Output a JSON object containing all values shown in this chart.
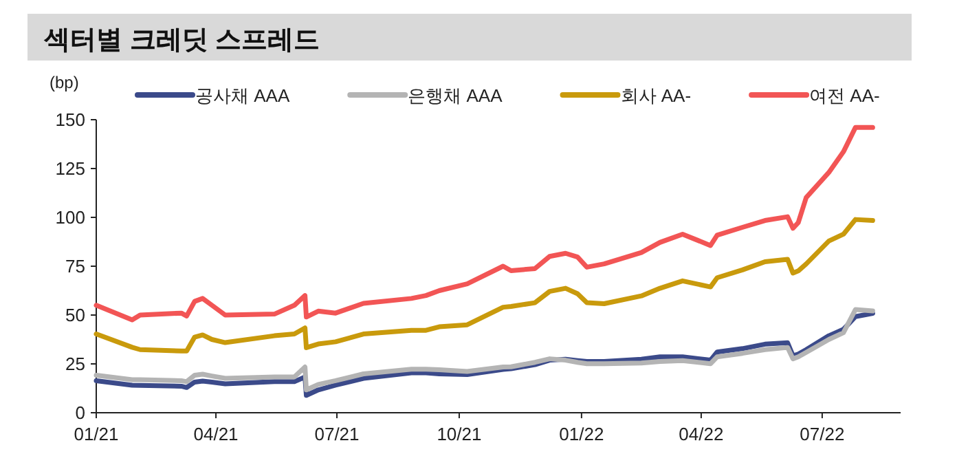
{
  "chart_data": {
    "type": "line",
    "title": "섹터별 크레딧 스프레드",
    "ylabel": "(bp)",
    "x": [
      "2021-01-01",
      "2021-01-28",
      "2021-02-03",
      "2021-03-06",
      "2021-03-10",
      "2021-03-16",
      "2021-03-22",
      "2021-03-29",
      "2021-04-08",
      "2021-05-15",
      "2021-05-30",
      "2021-06-07",
      "2021-06-08",
      "2021-06-17",
      "2021-06-30",
      "2021-07-21",
      "2021-08-26",
      "2021-09-06",
      "2021-09-16",
      "2021-10-07",
      "2021-11-03",
      "2021-11-09",
      "2021-11-27",
      "2021-12-08",
      "2021-12-20",
      "2021-12-29",
      "2022-01-05",
      "2022-01-18",
      "2022-02-15",
      "2022-03-01",
      "2022-03-18",
      "2022-04-08",
      "2022-04-13",
      "2022-05-02",
      "2022-05-19",
      "2022-06-05",
      "2022-06-09",
      "2022-06-13",
      "2022-06-19",
      "2022-07-06",
      "2022-07-17",
      "2022-07-26",
      "2022-08-08"
    ],
    "series": [
      {
        "name": "공사채 AAA",
        "color": "#3b4a8a",
        "values": [
          16.4,
          14.1,
          14,
          13.6,
          12.9,
          15.7,
          16.2,
          15.7,
          14.8,
          15.9,
          15.9,
          18.3,
          8.9,
          11.7,
          14.1,
          17.6,
          20.4,
          20.4,
          19.9,
          19.5,
          22.2,
          22.5,
          24.6,
          26.9,
          27.4,
          26.7,
          26.2,
          26.2,
          27.4,
          28.6,
          28.6,
          26.9,
          31.1,
          32.8,
          35.1,
          35.8,
          29.2,
          30,
          32.3,
          39.4,
          42.7,
          49.2,
          50.9
        ]
      },
      {
        "name": "은행채 AAA",
        "color": "#b4b4b4",
        "values": [
          19.2,
          16.9,
          16.9,
          16.4,
          15.9,
          19.2,
          19.7,
          18.8,
          17.6,
          18.3,
          18.3,
          23.4,
          11.7,
          14.5,
          16.4,
          19.9,
          22.3,
          22.3,
          22,
          21.1,
          23.4,
          23.5,
          25.8,
          27.6,
          26.9,
          25.8,
          25.1,
          25.1,
          25.4,
          26.2,
          26.7,
          25.1,
          28.6,
          30.4,
          32.3,
          33.4,
          27.6,
          28.6,
          30.9,
          37.5,
          41,
          52.8,
          52.1
        ]
      },
      {
        "name": "회사 AA-",
        "color": "#c99a0c",
        "values": [
          40.3,
          33.5,
          32.3,
          31.6,
          31.6,
          38.7,
          39.8,
          37.5,
          35.9,
          39.4,
          40.3,
          43.4,
          33.3,
          35.2,
          36.3,
          40.3,
          42.2,
          42.2,
          44,
          45,
          54,
          54.4,
          56.3,
          62.1,
          63.7,
          60.9,
          56.3,
          55.8,
          59.8,
          63.7,
          67.5,
          64.4,
          69.1,
          73.1,
          77.3,
          78.5,
          71.5,
          72.6,
          76.2,
          87.9,
          91.4,
          98.9,
          98.4
        ]
      },
      {
        "name": "여전 AA-",
        "color": "#f25555",
        "values": [
          55,
          47.5,
          50,
          51,
          49.5,
          57,
          58.5,
          55,
          50,
          50.5,
          55,
          60,
          49,
          52,
          51,
          56,
          58.5,
          60,
          62.5,
          66,
          75,
          72.7,
          73.8,
          80,
          81.6,
          79.7,
          74.5,
          76.2,
          82,
          87.2,
          91.4,
          85.6,
          90.9,
          94.9,
          98.4,
          100.3,
          94.4,
          97.3,
          110.2,
          123,
          133.6,
          146,
          146
        ]
      }
    ],
    "xlim": [
      "2021-01-01",
      "2022-08-29"
    ],
    "xticks": [
      {
        "value": "2021-01-01",
        "label": "01/21"
      },
      {
        "value": "2021-04-01",
        "label": "04/21"
      },
      {
        "value": "2021-07-01",
        "label": "07/21"
      },
      {
        "value": "2021-10-01",
        "label": "10/21"
      },
      {
        "value": "2022-01-01",
        "label": "01/22"
      },
      {
        "value": "2022-04-01",
        "label": "04/22"
      },
      {
        "value": "2022-07-01",
        "label": "07/22"
      }
    ],
    "ylim": [
      0,
      150
    ],
    "yticks": [
      0,
      25,
      50,
      75,
      100,
      125,
      150
    ],
    "legend": "top",
    "grid": false,
    "marker": "none",
    "line_style": "solid"
  }
}
